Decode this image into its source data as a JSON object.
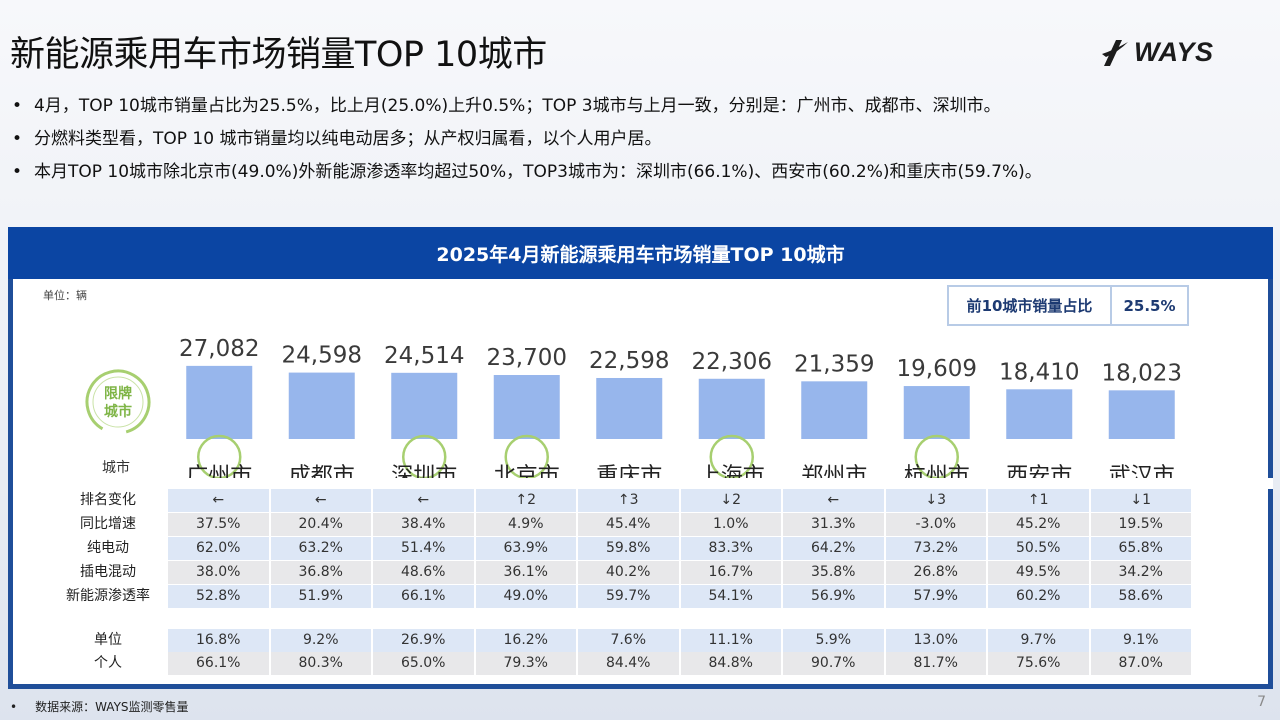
{
  "title": "新能源乘用车市场销量TOP 10城市",
  "logo_text": "WAYS",
  "bullets": [
    "4月，TOP 10城市销量占比为25.5%，比上月(25.0%)上升0.5%；TOP 3城市与上月一致，分别是：广州市、成都市、深圳市。",
    "分燃料类型看，TOP 10 城市销量均以纯电动居多；从产权归属看，以个人用户居。",
    "本月TOP 10城市除北京市(49.0%)外新能源渗透率均超过50%，TOP3城市为：深圳市(66.1%)、西安市(60.2%)和重庆市(59.7%)。"
  ],
  "panel": {
    "title": "2025年4月新能源乘用车市场销量TOP 10城市",
    "unit": "单位：辆",
    "ratio_label": "前10城市销量占比",
    "ratio_value": "25.5%",
    "badge_line1": "限牌",
    "badge_line2": "城市",
    "city_axis_label": "城市"
  },
  "chart_data": {
    "type": "bar",
    "categories": [
      "广州市",
      "成都市",
      "深圳市",
      "北京市",
      "重庆市",
      "上海市",
      "郑州市",
      "杭州市",
      "西安市",
      "武汉市"
    ],
    "values": [
      27082,
      24598,
      24514,
      23700,
      22598,
      22306,
      21359,
      19609,
      18410,
      18023
    ],
    "value_labels": [
      "27,082",
      "24,598",
      "24,514",
      "23,700",
      "22,598",
      "22,306",
      "21,359",
      "19,609",
      "18,410",
      "18,023"
    ],
    "restricted": [
      true,
      false,
      true,
      true,
      false,
      true,
      false,
      true,
      false,
      false
    ],
    "ylim": [
      0,
      30000
    ],
    "bar_color": "#97b6ec",
    "restricted_ring_color": "#a7cf70"
  },
  "table": {
    "rows": [
      {
        "label": "排名变化",
        "values": [
          "←",
          "←",
          "←",
          "↑2",
          "↑3",
          "↓2",
          "←",
          "↓3",
          "↑1",
          "↓1"
        ],
        "style": "blue"
      },
      {
        "label": "同比增速",
        "values": [
          "37.5%",
          "20.4%",
          "38.4%",
          "4.9%",
          "45.4%",
          "1.0%",
          "31.3%",
          "-3.0%",
          "45.2%",
          "19.5%"
        ],
        "style": "grey"
      },
      {
        "label": "纯电动",
        "values": [
          "62.0%",
          "63.2%",
          "51.4%",
          "63.9%",
          "59.8%",
          "83.3%",
          "64.2%",
          "73.2%",
          "50.5%",
          "65.8%"
        ],
        "style": "blue"
      },
      {
        "label": "插电混动",
        "values": [
          "38.0%",
          "36.8%",
          "48.6%",
          "36.1%",
          "40.2%",
          "16.7%",
          "35.8%",
          "26.8%",
          "49.5%",
          "34.2%"
        ],
        "style": "grey"
      },
      {
        "label": "新能源渗透率",
        "values": [
          "52.8%",
          "51.9%",
          "66.1%",
          "49.0%",
          "59.7%",
          "54.1%",
          "56.9%",
          "57.9%",
          "60.2%",
          "58.6%"
        ],
        "style": "blue"
      }
    ],
    "ownership_rows": [
      {
        "label": "单位",
        "values": [
          "16.8%",
          "9.2%",
          "26.9%",
          "16.2%",
          "7.6%",
          "11.1%",
          "5.9%",
          "13.0%",
          "9.7%",
          "9.1%"
        ],
        "style": "blue"
      },
      {
        "label": "个人",
        "values": [
          "66.1%",
          "80.3%",
          "65.0%",
          "79.3%",
          "84.4%",
          "84.8%",
          "90.7%",
          "81.7%",
          "75.6%",
          "87.0%"
        ],
        "style": "grey"
      }
    ]
  },
  "footer": {
    "bullet": "•",
    "source": "数据来源：WAYS监测零售量",
    "page": "7"
  }
}
